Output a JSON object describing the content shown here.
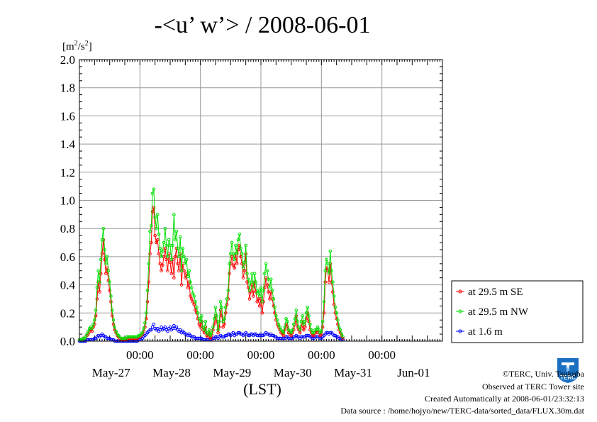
{
  "chart_data": {
    "type": "line",
    "title": "-<u’ w’> / 2008-06-01",
    "y_unit_label": "[m²/s²]",
    "y_unit_parts": {
      "base1": "[m",
      "sup1": "2",
      "mid": "/s",
      "sup2": "2",
      "end": "]"
    },
    "xlabel": "(LST)",
    "ylim": [
      0,
      2.0
    ],
    "yticks": [
      "0.0",
      "0.2",
      "0.4",
      "0.6",
      "0.8",
      "1.0",
      "1.2",
      "1.4",
      "1.6",
      "1.8",
      "2.0"
    ],
    "xlim_hours": [
      0,
      144
    ],
    "time_ticks": [
      "00:00",
      "00:00",
      "00:00",
      "00:00",
      "00:00"
    ],
    "date_labels": [
      "May-27",
      "May-28",
      "May-29",
      "May-30",
      "May-31",
      "Jun-01"
    ],
    "grid": true,
    "legend_position": "right",
    "interval_hours": 0.5,
    "series": [
      {
        "name": "at 29.5 m SE",
        "color": "#ff0000",
        "values": [
          0.01,
          0.01,
          0.01,
          0.02,
          0.02,
          0.03,
          0.04,
          0.05,
          0.07,
          0.08,
          0.07,
          0.1,
          0.12,
          0.18,
          0.3,
          0.42,
          0.35,
          0.48,
          0.62,
          0.72,
          0.58,
          0.48,
          0.52,
          0.43,
          0.36,
          0.28,
          0.18,
          0.12,
          0.08,
          0.06,
          0.04,
          0.03,
          0.02,
          0.01,
          0.01,
          0.01,
          0.01,
          0.01,
          0.02,
          0.02,
          0.02,
          0.02,
          0.02,
          0.02,
          0.02,
          0.02,
          0.02,
          0.03,
          0.03,
          0.04,
          0.05,
          0.07,
          0.1,
          0.16,
          0.28,
          0.42,
          0.62,
          0.7,
          0.92,
          0.95,
          0.75,
          0.7,
          0.72,
          0.62,
          0.55,
          0.5,
          0.54,
          0.6,
          0.66,
          0.58,
          0.5,
          0.62,
          0.56,
          0.48,
          0.58,
          0.45,
          0.6,
          0.66,
          0.55,
          0.5,
          0.62,
          0.4,
          0.55,
          0.5,
          0.45,
          0.48,
          0.38,
          0.42,
          0.32,
          0.3,
          0.28,
          0.26,
          0.22,
          0.2,
          0.16,
          0.12,
          0.1,
          0.14,
          0.08,
          0.06,
          0.1,
          0.04,
          0.03,
          0.06,
          0.02,
          0.04,
          0.08,
          0.12,
          0.18,
          0.14,
          0.06,
          0.1,
          0.22,
          0.18,
          0.1,
          0.12,
          0.2,
          0.26,
          0.3,
          0.48,
          0.55,
          0.6,
          0.54,
          0.52,
          0.62,
          0.55,
          0.65,
          0.68,
          0.6,
          0.55,
          0.45,
          0.5,
          0.62,
          0.42,
          0.38,
          0.3,
          0.35,
          0.4,
          0.32,
          0.42,
          0.35,
          0.28,
          0.3,
          0.25,
          0.3,
          0.2,
          0.28,
          0.38,
          0.45,
          0.4,
          0.35,
          0.3,
          0.35,
          0.3,
          0.25,
          0.2,
          0.15,
          0.12,
          0.1,
          0.08,
          0.06,
          0.05,
          0.04,
          0.08,
          0.12,
          0.1,
          0.06,
          0.05,
          0.04,
          0.06,
          0.08,
          0.12,
          0.18,
          0.1,
          0.08,
          0.06,
          0.1,
          0.14,
          0.08,
          0.1,
          0.16,
          0.2,
          0.14,
          0.08,
          0.06,
          0.04,
          0.04,
          0.06,
          0.06,
          0.08,
          0.06,
          0.04,
          0.05,
          0.1,
          0.2,
          0.42,
          0.52,
          0.5,
          0.42,
          0.55,
          0.42,
          0.35,
          0.26,
          0.2,
          0.16,
          0.12,
          0.08,
          0.06,
          0.04,
          0.02
        ]
      },
      {
        "name": "at 29.5 m NW",
        "color": "#00e000",
        "values": [
          0.01,
          0.01,
          0.01,
          0.02,
          0.02,
          0.03,
          0.05,
          0.07,
          0.09,
          0.1,
          0.09,
          0.12,
          0.15,
          0.22,
          0.38,
          0.5,
          0.42,
          0.58,
          0.72,
          0.8,
          0.65,
          0.55,
          0.6,
          0.5,
          0.42,
          0.32,
          0.22,
          0.15,
          0.1,
          0.07,
          0.05,
          0.04,
          0.03,
          0.02,
          0.02,
          0.02,
          0.02,
          0.02,
          0.03,
          0.03,
          0.03,
          0.03,
          0.03,
          0.03,
          0.03,
          0.03,
          0.03,
          0.04,
          0.04,
          0.05,
          0.06,
          0.09,
          0.13,
          0.2,
          0.36,
          0.55,
          0.78,
          0.82,
          1.05,
          1.08,
          0.88,
          0.8,
          0.9,
          0.76,
          0.66,
          0.6,
          0.64,
          0.7,
          0.8,
          0.68,
          0.6,
          0.72,
          0.68,
          0.58,
          0.68,
          0.9,
          0.72,
          0.78,
          0.66,
          0.6,
          0.74,
          0.5,
          0.66,
          0.6,
          0.55,
          0.58,
          0.46,
          0.5,
          0.42,
          0.38,
          0.34,
          0.32,
          0.28,
          0.24,
          0.2,
          0.16,
          0.14,
          0.18,
          0.1,
          0.08,
          0.14,
          0.06,
          0.05,
          0.08,
          0.04,
          0.06,
          0.1,
          0.16,
          0.24,
          0.18,
          0.08,
          0.14,
          0.28,
          0.24,
          0.14,
          0.16,
          0.24,
          0.3,
          0.36,
          0.55,
          0.62,
          0.7,
          0.62,
          0.58,
          0.68,
          0.62,
          0.72,
          0.76,
          0.66,
          0.62,
          0.52,
          0.56,
          0.68,
          0.48,
          0.44,
          0.36,
          0.42,
          0.48,
          0.38,
          0.48,
          0.42,
          0.34,
          0.36,
          0.32,
          0.38,
          0.28,
          0.36,
          0.48,
          0.55,
          0.5,
          0.44,
          0.38,
          0.44,
          0.36,
          0.3,
          0.24,
          0.18,
          0.15,
          0.12,
          0.1,
          0.08,
          0.07,
          0.06,
          0.1,
          0.16,
          0.14,
          0.08,
          0.07,
          0.06,
          0.08,
          0.12,
          0.16,
          0.22,
          0.14,
          0.1,
          0.08,
          0.14,
          0.18,
          0.12,
          0.14,
          0.2,
          0.24,
          0.18,
          0.12,
          0.08,
          0.06,
          0.06,
          0.08,
          0.08,
          0.1,
          0.08,
          0.06,
          0.07,
          0.14,
          0.28,
          0.5,
          0.58,
          0.55,
          0.48,
          0.64,
          0.5,
          0.42,
          0.32,
          0.24,
          0.2,
          0.15,
          0.1,
          0.08,
          0.05,
          0.03
        ]
      },
      {
        "name": "at 1.6 m",
        "color": "#0000ff",
        "values": [
          0.0,
          0.0,
          0.0,
          0.0,
          0.0,
          0.0,
          0.01,
          0.01,
          0.01,
          0.01,
          0.01,
          0.01,
          0.02,
          0.02,
          0.03,
          0.04,
          0.03,
          0.04,
          0.05,
          0.04,
          0.03,
          0.03,
          0.02,
          0.02,
          0.02,
          0.01,
          0.01,
          0.01,
          0.0,
          0.0,
          0.0,
          0.0,
          0.0,
          0.0,
          0.0,
          0.0,
          0.0,
          0.0,
          0.0,
          0.0,
          0.0,
          0.0,
          0.0,
          0.0,
          0.0,
          0.0,
          0.0,
          0.01,
          0.01,
          0.01,
          0.02,
          0.03,
          0.04,
          0.05,
          0.06,
          0.07,
          0.08,
          0.08,
          0.1,
          0.12,
          0.09,
          0.08,
          0.09,
          0.07,
          0.08,
          0.1,
          0.08,
          0.09,
          0.1,
          0.08,
          0.07,
          0.09,
          0.1,
          0.08,
          0.09,
          0.11,
          0.09,
          0.1,
          0.08,
          0.07,
          0.08,
          0.06,
          0.07,
          0.06,
          0.05,
          0.05,
          0.04,
          0.05,
          0.04,
          0.03,
          0.03,
          0.03,
          0.02,
          0.02,
          0.02,
          0.02,
          0.02,
          0.02,
          0.01,
          0.01,
          0.01,
          0.01,
          0.01,
          0.01,
          0.01,
          0.01,
          0.02,
          0.02,
          0.03,
          0.03,
          0.02,
          0.03,
          0.04,
          0.03,
          0.03,
          0.03,
          0.04,
          0.04,
          0.05,
          0.05,
          0.04,
          0.05,
          0.06,
          0.04,
          0.05,
          0.05,
          0.06,
          0.06,
          0.05,
          0.05,
          0.04,
          0.05,
          0.06,
          0.05,
          0.04,
          0.04,
          0.05,
          0.05,
          0.04,
          0.05,
          0.05,
          0.04,
          0.04,
          0.04,
          0.05,
          0.04,
          0.04,
          0.05,
          0.06,
          0.05,
          0.05,
          0.04,
          0.05,
          0.04,
          0.04,
          0.03,
          0.03,
          0.02,
          0.02,
          0.02,
          0.02,
          0.02,
          0.02,
          0.02,
          0.03,
          0.03,
          0.02,
          0.02,
          0.02,
          0.02,
          0.03,
          0.03,
          0.04,
          0.03,
          0.03,
          0.02,
          0.03,
          0.03,
          0.03,
          0.03,
          0.04,
          0.04,
          0.04,
          0.03,
          0.03,
          0.02,
          0.02,
          0.03,
          0.03,
          0.03,
          0.03,
          0.02,
          0.02,
          0.03,
          0.04,
          0.05,
          0.06,
          0.06,
          0.05,
          0.06,
          0.06,
          0.05,
          0.04,
          0.04,
          0.03,
          0.03,
          0.02,
          0.02,
          0.01,
          0.01
        ]
      }
    ]
  },
  "footer": {
    "copyright": "©TERC, Univ. Tsukuba",
    "observed": "Observed at TERC Tower site",
    "created": "Created Automatically at 2008-06-01/23:32:13",
    "source": "Data source : /home/hojyo/new/TERC-data/sorted_data/FLUX.30m.dat"
  },
  "logo": {
    "text": "TERC",
    "color": "#1a6fc0",
    "icon": "terc-logo-icon"
  }
}
